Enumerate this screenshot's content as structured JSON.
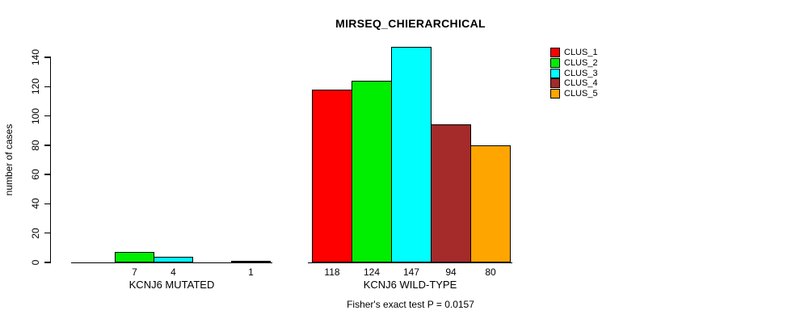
{
  "page": {
    "background": "#ffffff",
    "axis_color": "#000000",
    "text_color": "#000000"
  },
  "chart_data": {
    "type": "bar",
    "title": "MIRSEQ_CHIERARCHICAL",
    "subtitle": "Fisher's exact test P = 0.0157",
    "ylabel": "number of cases",
    "xlabel": "",
    "ylim": [
      0,
      147
    ],
    "yticks": [
      0,
      20,
      40,
      60,
      80,
      100,
      120,
      140
    ],
    "grid": false,
    "legend_position": "top-right",
    "series": [
      "CLUS_1",
      "CLUS_2",
      "CLUS_3",
      "CLUS_4",
      "CLUS_5"
    ],
    "series_colors": [
      "#FF0000",
      "#00EE00",
      "#00FFFF",
      "#A52A2A",
      "#FFA500"
    ],
    "bar_border_color": "#000000",
    "groups": [
      {
        "label": "KCNJ6 MUTATED",
        "values": [
          0,
          7,
          4,
          0,
          1
        ],
        "bar_labels": [
          "",
          "7",
          "4",
          "",
          "1"
        ]
      },
      {
        "label": "KCNJ6 WILD-TYPE",
        "values": [
          118,
          124,
          147,
          94,
          80
        ],
        "bar_labels": [
          "118",
          "124",
          "147",
          "94",
          "80"
        ]
      }
    ]
  }
}
